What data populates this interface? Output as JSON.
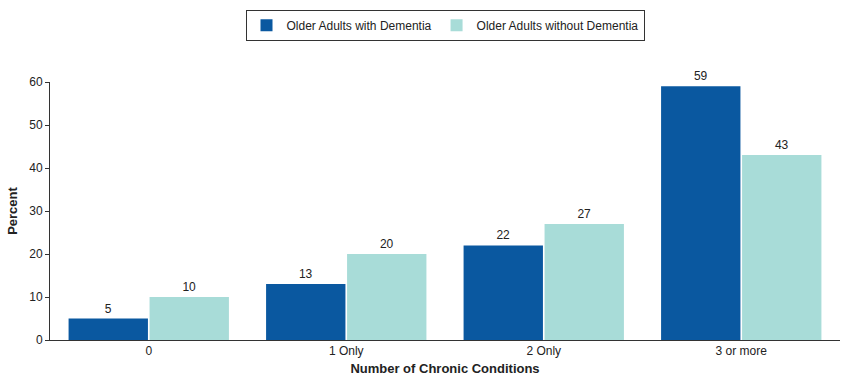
{
  "chart_data": {
    "type": "bar",
    "x_label": "Number of Chronic Conditions",
    "y_label": "Percent",
    "categories": [
      "0",
      "1 Only",
      "2 Only",
      "3 or more"
    ],
    "series": [
      {
        "name": "Older Adults with Dementia",
        "color": "#0a58a0",
        "values": [
          5,
          13,
          22,
          59
        ]
      },
      {
        "name": "Older Adults without Dementia",
        "color": "#a8dcd8",
        "values": [
          10,
          20,
          27,
          43
        ]
      }
    ],
    "ylim": [
      0,
      60
    ],
    "yticks": [
      0,
      10,
      20,
      30,
      40,
      50,
      60
    ],
    "grid": false,
    "legend": "top",
    "data_labels": true
  }
}
